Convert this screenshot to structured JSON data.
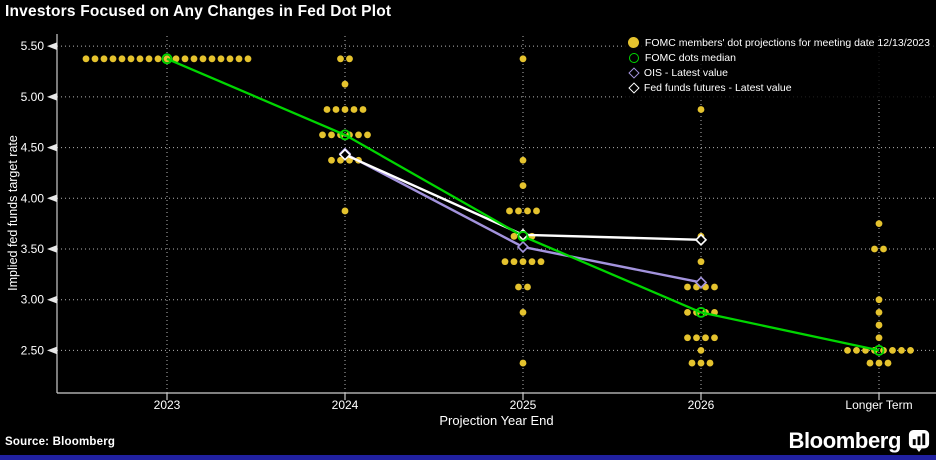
{
  "title": "Investors Focused on Any Changes in Fed Dot Plot",
  "source": "Source: Bloomberg",
  "brand": {
    "logo_text": "Bloomberg",
    "logo_icon": "bloomberg-terminal-icon"
  },
  "colors": {
    "background": "#000000",
    "text": "#ffffff",
    "grid": "#b3b3b3",
    "dot": "#e5c32e",
    "median": "#00d600",
    "ois": "#a393dd",
    "futures": "#ffffff",
    "accent_bar": "#2020a0"
  },
  "legend": {
    "items": [
      {
        "label": "FOMC members' dot projections for meeting date 12/13/2023",
        "marker": "filled-circle",
        "color": "#e5c32e"
      },
      {
        "label": "FOMC dots median",
        "marker": "open-circle",
        "color": "#00d600"
      },
      {
        "label": "OIS - Latest value",
        "marker": "open-diamond",
        "color": "#a393dd"
      },
      {
        "label": "Fed funds futures - Latest value",
        "marker": "open-diamond",
        "color": "#ffffff"
      }
    ]
  },
  "chart_data": {
    "type": "scatter",
    "title": "Investors Focused on Any Changes in Fed Dot Plot",
    "xlabel": "Projection Year End",
    "ylabel": "Implied fed funds target rate",
    "categories": [
      "2023",
      "2024",
      "2025",
      "2026",
      "Longer Term"
    ],
    "y_tick_labels": [
      "2.50",
      "3.00",
      "3.50",
      "4.00",
      "4.50",
      "5.00",
      "5.50"
    ],
    "y_ticks": [
      2.5,
      3.0,
      3.5,
      4.0,
      4.5,
      5.0,
      5.5
    ],
    "ylim": [
      2.08,
      5.6
    ],
    "grid": "dotted",
    "legend_position": "top-right",
    "dot_projections": [
      {
        "category": "2023",
        "rows": [
          {
            "value": 5.375,
            "count": 19
          }
        ]
      },
      {
        "category": "2024",
        "rows": [
          {
            "value": 5.375,
            "count": 2
          },
          {
            "value": 5.125,
            "count": 1
          },
          {
            "value": 4.875,
            "count": 5
          },
          {
            "value": 4.625,
            "count": 6
          },
          {
            "value": 4.375,
            "count": 4
          },
          {
            "value": 3.875,
            "count": 1
          }
        ]
      },
      {
        "category": "2025",
        "rows": [
          {
            "value": 5.375,
            "count": 1
          },
          {
            "value": 4.375,
            "count": 1
          },
          {
            "value": 4.125,
            "count": 1
          },
          {
            "value": 3.875,
            "count": 4
          },
          {
            "value": 3.625,
            "count": 3
          },
          {
            "value": 3.375,
            "count": 5
          },
          {
            "value": 3.125,
            "count": 2
          },
          {
            "value": 2.875,
            "count": 1
          },
          {
            "value": 2.375,
            "count": 1
          }
        ]
      },
      {
        "category": "2026",
        "rows": [
          {
            "value": 4.875,
            "count": 1
          },
          {
            "value": 3.625,
            "count": 1
          },
          {
            "value": 3.375,
            "count": 1
          },
          {
            "value": 3.125,
            "count": 4
          },
          {
            "value": 2.875,
            "count": 4
          },
          {
            "value": 2.625,
            "count": 4
          },
          {
            "value": 2.5,
            "count": 1
          },
          {
            "value": 2.375,
            "count": 3
          }
        ]
      },
      {
        "category": "Longer Term",
        "rows": [
          {
            "value": 3.75,
            "count": 1
          },
          {
            "value": 3.5,
            "count": 2
          },
          {
            "value": 3.0,
            "count": 1
          },
          {
            "value": 2.875,
            "count": 1
          },
          {
            "value": 2.75,
            "count": 1
          },
          {
            "value": 2.625,
            "count": 1
          },
          {
            "value": 2.5,
            "count": 8
          },
          {
            "value": 2.375,
            "count": 3
          }
        ]
      }
    ],
    "series": [
      {
        "name": "FOMC dots median",
        "marker": "open-circle",
        "color_key": "median",
        "categories": [
          "2023",
          "2024",
          "2025",
          "2026",
          "Longer Term"
        ],
        "values": [
          5.375,
          4.625,
          3.625,
          2.875,
          2.5
        ]
      },
      {
        "name": "OIS - Latest value",
        "marker": "open-diamond",
        "color_key": "ois",
        "categories": [
          "2024",
          "2025",
          "2026"
        ],
        "values": [
          4.44,
          3.52,
          3.17
        ]
      },
      {
        "name": "Fed funds futures - Latest value",
        "marker": "open-diamond",
        "color_key": "futures",
        "categories": [
          "2024",
          "2025",
          "2026"
        ],
        "values": [
          4.43,
          3.64,
          3.59
        ]
      }
    ]
  }
}
